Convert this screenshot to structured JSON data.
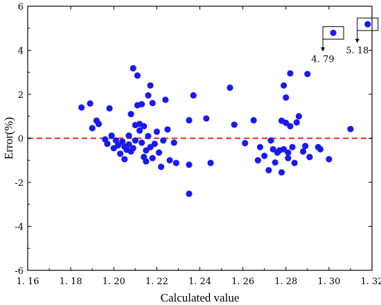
{
  "chart_data": {
    "type": "scatter",
    "xlabel": "Calculated value",
    "ylabel": "Error(%)",
    "xlim": [
      1.16,
      1.32
    ],
    "ylim": [
      -6,
      6
    ],
    "x_ticks": [
      "1. 16",
      "1. 18",
      "1. 20",
      "1. 22",
      "1. 24",
      "1. 26",
      "1. 28",
      "1. 30",
      "1. 32"
    ],
    "y_ticks": [
      "-6",
      "-4",
      "-2",
      "0",
      "2",
      "4",
      "6"
    ],
    "grid": false,
    "marker_color": "#1a1aee",
    "reference_line": {
      "y": 0,
      "style": "dashed",
      "color": "#e8201c"
    },
    "points": [
      [
        1.185,
        1.4
      ],
      [
        1.189,
        1.58
      ],
      [
        1.19,
        0.46
      ],
      [
        1.192,
        0.8
      ],
      [
        1.193,
        0.65
      ],
      [
        1.196,
        -0.05
      ],
      [
        1.197,
        -0.25
      ],
      [
        1.198,
        1.36
      ],
      [
        1.199,
        0.12
      ],
      [
        1.2,
        -0.45
      ],
      [
        1.201,
        -0.1
      ],
      [
        1.202,
        -0.32
      ],
      [
        1.203,
        -0.7
      ],
      [
        1.204,
        -0.15
      ],
      [
        1.205,
        -0.38
      ],
      [
        1.205,
        -0.95
      ],
      [
        1.206,
        -0.52
      ],
      [
        1.207,
        0.12
      ],
      [
        1.207,
        -0.28
      ],
      [
        1.208,
        1.1
      ],
      [
        1.208,
        -0.6
      ],
      [
        1.209,
        3.18
      ],
      [
        1.209,
        -0.45
      ],
      [
        1.21,
        0.6
      ],
      [
        1.21,
        -0.1
      ],
      [
        1.211,
        2.85
      ],
      [
        1.211,
        1.5
      ],
      [
        1.212,
        0.65
      ],
      [
        1.212,
        0.35
      ],
      [
        1.213,
        1.55
      ],
      [
        1.213,
        -0.2
      ],
      [
        1.214,
        0.55
      ],
      [
        1.214,
        -0.85
      ],
      [
        1.215,
        -1.05
      ],
      [
        1.215,
        -0.55
      ],
      [
        1.216,
        1.95
      ],
      [
        1.216,
        0.1
      ],
      [
        1.217,
        2.4
      ],
      [
        1.217,
        -0.4
      ],
      [
        1.218,
        1.6
      ],
      [
        1.218,
        -0.9
      ],
      [
        1.219,
        -0.25
      ],
      [
        1.22,
        0.3
      ],
      [
        1.221,
        -0.65
      ],
      [
        1.222,
        -1.3
      ],
      [
        1.223,
        -0.1
      ],
      [
        1.224,
        1.75
      ],
      [
        1.225,
        0.4
      ],
      [
        1.226,
        -1.0
      ],
      [
        1.228,
        -0.2
      ],
      [
        1.229,
        -1.12
      ],
      [
        1.235,
        0.82
      ],
      [
        1.235,
        -1.2
      ],
      [
        1.235,
        -2.52
      ],
      [
        1.237,
        1.95
      ],
      [
        1.243,
        0.9
      ],
      [
        1.245,
        -1.12
      ],
      [
        1.254,
        2.3
      ],
      [
        1.256,
        0.62
      ],
      [
        1.261,
        -0.22
      ],
      [
        1.265,
        0.82
      ],
      [
        1.267,
        -1.0
      ],
      [
        1.268,
        -0.4
      ],
      [
        1.27,
        -0.8
      ],
      [
        1.272,
        -1.45
      ],
      [
        1.273,
        -0.1
      ],
      [
        1.274,
        -0.5
      ],
      [
        1.275,
        -1.1
      ],
      [
        1.276,
        -0.65
      ],
      [
        1.277,
        -0.55
      ],
      [
        1.278,
        -1.55
      ],
      [
        1.278,
        0.8
      ],
      [
        1.279,
        2.4
      ],
      [
        1.279,
        -0.5
      ],
      [
        1.28,
        1.85
      ],
      [
        1.28,
        0.7
      ],
      [
        1.281,
        -0.65
      ],
      [
        1.281,
        -0.9
      ],
      [
        1.282,
        2.95
      ],
      [
        1.282,
        0.55
      ],
      [
        1.283,
        -0.4
      ],
      [
        1.284,
        -1.12
      ],
      [
        1.285,
        0.72
      ],
      [
        1.286,
        1.0
      ],
      [
        1.288,
        -0.6
      ],
      [
        1.289,
        -0.35
      ],
      [
        1.29,
        2.92
      ],
      [
        1.291,
        -0.85
      ],
      [
        1.295,
        -0.4
      ],
      [
        1.296,
        -0.5
      ],
      [
        1.3,
        -0.95
      ],
      [
        1.31,
        0.42
      ],
      [
        1.302,
        4.79
      ],
      [
        1.318,
        5.18
      ]
    ],
    "annotations": [
      {
        "label": "4. 79",
        "x": 1.302,
        "y": 4.79
      },
      {
        "label": "5. 18",
        "x": 1.318,
        "y": 5.18
      }
    ]
  }
}
